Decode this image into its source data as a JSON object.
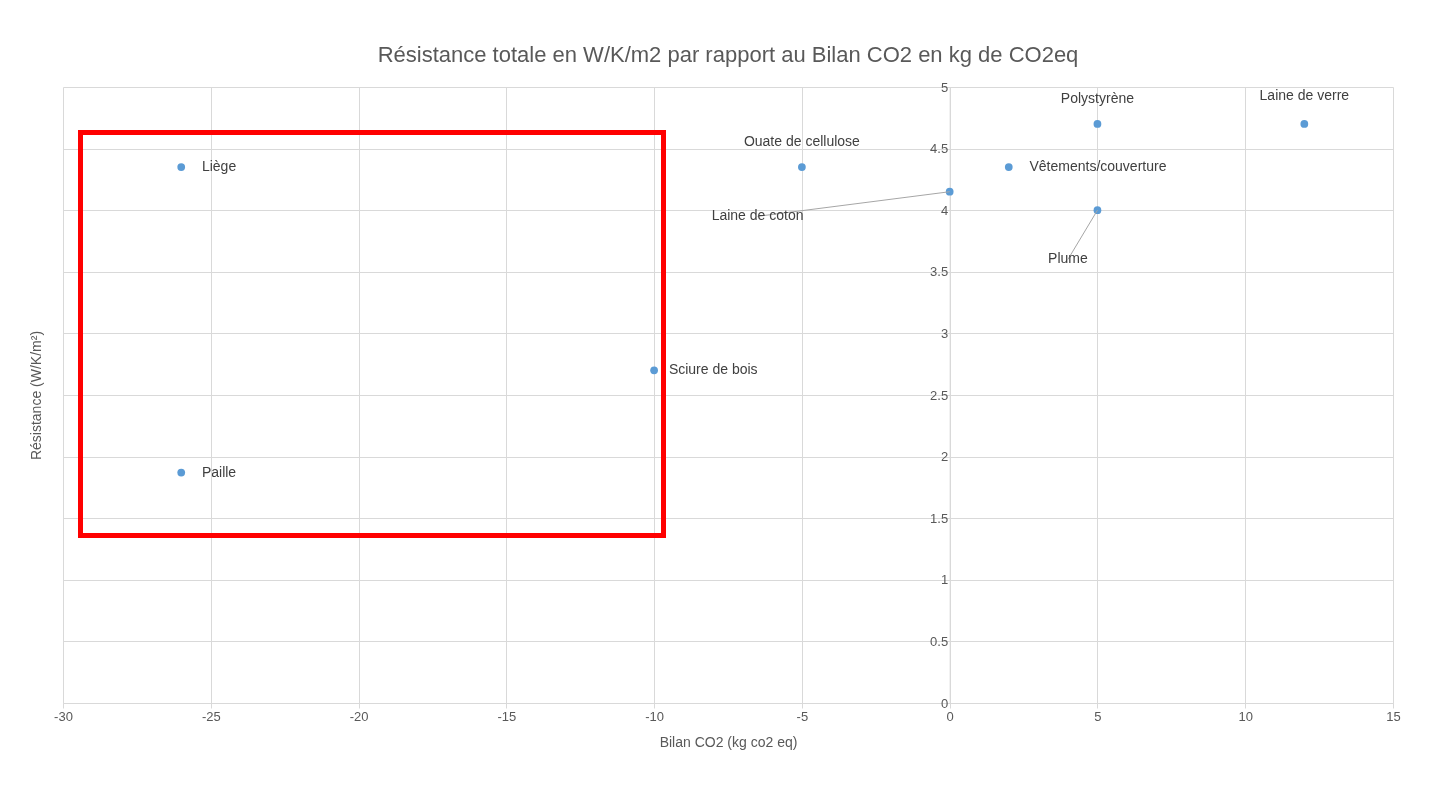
{
  "chart_data": {
    "type": "scatter",
    "title": "Résistance totale en W/K/m2 par rapport au Bilan CO2 en kg de CO2eq",
    "xlabel": "Bilan CO2 (kg co2 eq)",
    "ylabel": "Résistance (W/K/m²)",
    "x": [
      -26,
      -26,
      -10,
      -5,
      0,
      2,
      5,
      5,
      12
    ],
    "series": [
      {
        "color": "#5b9bd5",
        "values": [
          4.35,
          1.87,
          2.7,
          4.35,
          4.15,
          4.35,
          4.7,
          4,
          4.7
        ]
      }
    ],
    "xlim": [
      -30,
      15
    ],
    "xticks": [
      -30,
      -25,
      -20,
      -15,
      -10,
      -5,
      0,
      5,
      10,
      15
    ],
    "ylim": [
      0,
      5
    ],
    "yticks": [
      0,
      0.5,
      1,
      1.5,
      2,
      2.5,
      3,
      3.5,
      4,
      4.5,
      5
    ],
    "grid": true,
    "legend": false,
    "marker": "circle",
    "annotations": [
      {
        "text": "Liège",
        "x": -26,
        "y": 4.35
      },
      {
        "text": "Paille",
        "x": -26,
        "y": 1.87
      },
      {
        "text": "Sciure de bois",
        "x": -10,
        "y": 2.7
      },
      {
        "text": "Ouate de cellulose",
        "x": -5,
        "y": 4.35
      },
      {
        "text": "Laine de coton",
        "x": 0,
        "y": 4.15
      },
      {
        "text": "Vêtements/couverture",
        "x": 2,
        "y": 4.35
      },
      {
        "text": "Polystyrène",
        "x": 5,
        "y": 4.7
      },
      {
        "text": "Plume",
        "x": 5,
        "y": 4
      },
      {
        "text": "Laine de verre",
        "x": 12,
        "y": 4.7
      }
    ]
  }
}
